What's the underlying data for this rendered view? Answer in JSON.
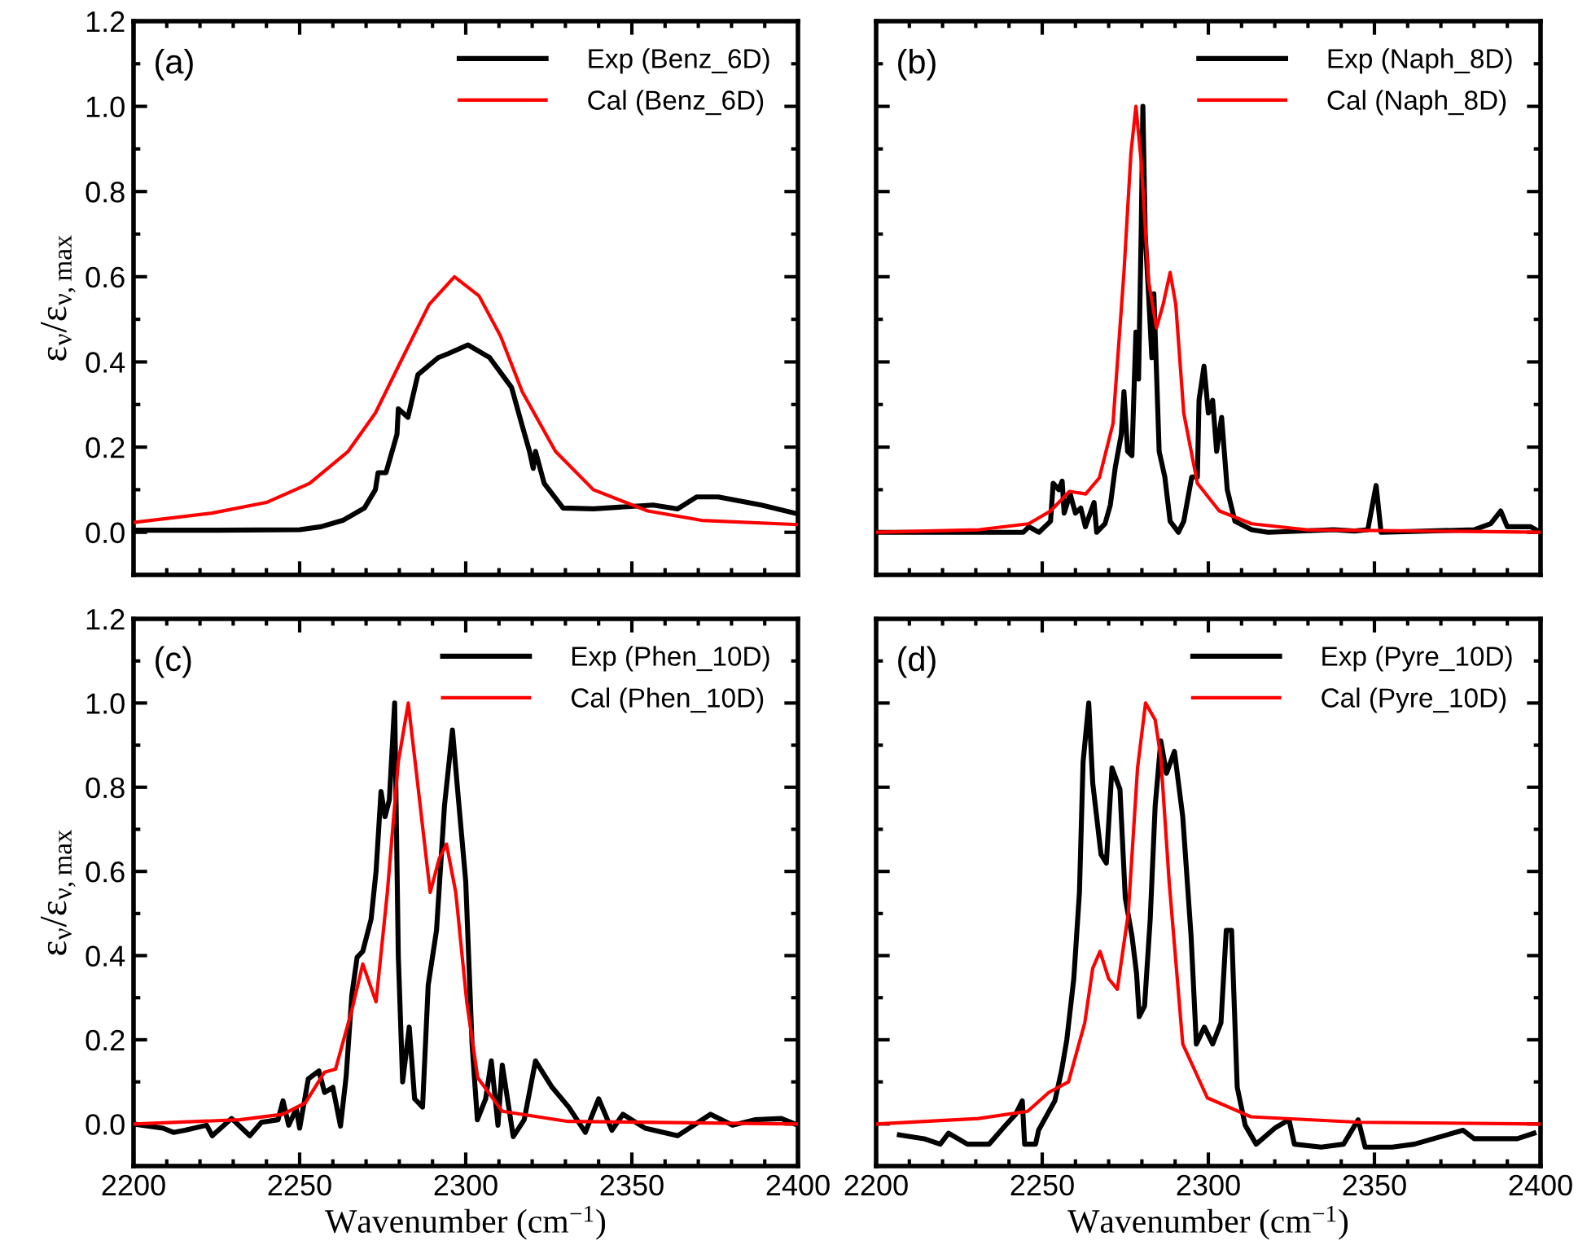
{
  "chart_data": [
    {
      "type": "line",
      "annotations": [
        "(a)"
      ],
      "ylabel": "ε$_{ν}$/ε$_{ν,max}$",
      "legend": "top right",
      "tick_labels": "y",
      "xlim": [
        2200,
        2400
      ],
      "xticks": [
        {
          "value": 2200,
          "label": null
        },
        {
          "value": 2250,
          "label": null
        },
        {
          "value": 2300,
          "label": null
        },
        {
          "value": 2350,
          "label": null
        },
        {
          "value": 2400,
          "label": null
        }
      ],
      "ylim": [
        -0.1,
        1.2
      ],
      "yticks": [
        {
          "value": 0,
          "label": "0.0"
        },
        {
          "value": 0.2,
          "label": "0.2"
        },
        {
          "value": 0.4,
          "label": "0.4"
        },
        {
          "value": 0.6,
          "label": "0.6"
        },
        {
          "value": 0.8,
          "label": "0.8"
        },
        {
          "value": 1.0,
          "label": "1.0"
        },
        {
          "value": 1.2,
          "label": "1.2"
        }
      ],
      "series": [
        {
          "name": "Exp (Benz_6D)",
          "color": "#000000",
          "x": [
            2200,
            2225,
            2250,
            2256.4,
            2263,
            2269.5,
            2272.8,
            2273.6,
            2276,
            2279.3,
            2279.7,
            2282.6,
            2285.6,
            2291.7,
            2294.9,
            2300.7,
            2307.2,
            2313.8,
            2317,
            2319.2,
            2320.3,
            2321,
            2323.6,
            2329.3,
            2338.4,
            2356.4,
            2363.8,
            2369.5,
            2376,
            2389,
            2399
          ],
          "values": [
            0.005,
            0.005,
            0.006,
            0.013,
            0.028,
            0.057,
            0.1,
            0.14,
            0.14,
            0.23,
            0.29,
            0.27,
            0.37,
            0.41,
            0.42,
            0.44,
            0.41,
            0.34,
            0.25,
            0.19,
            0.15,
            0.19,
            0.115,
            0.057,
            0.055,
            0.064,
            0.055,
            0.083,
            0.083,
            0.064,
            0.045
          ]
        },
        {
          "name": "Cal (Benz_6D)",
          "color": "#ff0000",
          "x": [
            2200,
            2223.6,
            2240,
            2253,
            2264.6,
            2272.8,
            2281,
            2289,
            2296.6,
            2304,
            2310.5,
            2317,
            2327,
            2338.4,
            2354.8,
            2371,
            2400
          ],
          "values": [
            0.023,
            0.045,
            0.07,
            0.115,
            0.19,
            0.28,
            0.41,
            0.535,
            0.6,
            0.555,
            0.46,
            0.33,
            0.19,
            0.1,
            0.05,
            0.028,
            0.018
          ]
        }
      ]
    },
    {
      "type": "line",
      "annotations": [
        "(b)"
      ],
      "legend": "top right",
      "tick_labels": false,
      "xlim": [
        2200,
        2400
      ],
      "xticks": [
        {
          "value": 2200,
          "label": null
        },
        {
          "value": 2250,
          "label": null
        },
        {
          "value": 2300,
          "label": null
        },
        {
          "value": 2350,
          "label": null
        },
        {
          "value": 2400,
          "label": null
        }
      ],
      "ylim": [
        -0.1,
        1.2
      ],
      "yticks": [
        {
          "value": 0,
          "label": null
        },
        {
          "value": 0.2,
          "label": null
        },
        {
          "value": 0.4,
          "label": null
        },
        {
          "value": 0.6,
          "label": null
        },
        {
          "value": 0.8,
          "label": null
        },
        {
          "value": 1.0,
          "label": null
        },
        {
          "value": 1.2,
          "label": null
        }
      ],
      "series": [
        {
          "name": "Exp (Naph_8D)",
          "color": "#000000",
          "x": [
            2200,
            2244.3,
            2246,
            2249,
            2252.5,
            2253.3,
            2255,
            2256,
            2256.6,
            2258.4,
            2260,
            2261.6,
            2263,
            2265.6,
            2266.4,
            2268.9,
            2270.5,
            2272,
            2273.8,
            2274.6,
            2275.7,
            2277,
            2278.2,
            2279,
            2279.8,
            2280.3,
            2281,
            2282,
            2283,
            2283.6,
            2285.2,
            2286.9,
            2288.5,
            2291,
            2292.6,
            2295,
            2296.7,
            2297.2,
            2298.7,
            2300,
            2301.3,
            2302.5,
            2304,
            2305.7,
            2308,
            2313,
            2318,
            2337.7,
            2344,
            2348,
            2350.5,
            2352,
            2380,
            2385,
            2388,
            2390,
            2397,
            2400
          ],
          "values": [
            0.0,
            0.0,
            0.013,
            0.0,
            0.026,
            0.115,
            0.1,
            0.12,
            0.045,
            0.09,
            0.045,
            0.057,
            0.013,
            0.07,
            0.0,
            0.02,
            0.064,
            0.153,
            0.23,
            0.33,
            0.19,
            0.18,
            0.47,
            0.36,
            0.71,
            1.0,
            0.7,
            0.56,
            0.41,
            0.56,
            0.19,
            0.13,
            0.026,
            0.0,
            0.026,
            0.13,
            0.13,
            0.31,
            0.39,
            0.28,
            0.31,
            0.19,
            0.27,
            0.1,
            0.026,
            0.006,
            0.0,
            0.006,
            0.003,
            0.006,
            0.11,
            0.0,
            0.006,
            0.02,
            0.05,
            0.013,
            0.013,
            0.0
          ]
        },
        {
          "name": "Cal (Naph_8D)",
          "color": "#ff0000",
          "x": [
            2200,
            2231,
            2245.9,
            2252.5,
            2258.2,
            2263.1,
            2267.2,
            2271.3,
            2274.6,
            2276.7,
            2278.2,
            2279.8,
            2282,
            2284.4,
            2286.4,
            2288.5,
            2290.2,
            2292.6,
            2296.7,
            2303.3,
            2313,
            2329.5,
            2400
          ],
          "values": [
            0.0,
            0.006,
            0.02,
            0.05,
            0.096,
            0.09,
            0.128,
            0.255,
            0.61,
            0.89,
            1.0,
            0.87,
            0.59,
            0.48,
            0.535,
            0.61,
            0.535,
            0.28,
            0.115,
            0.05,
            0.02,
            0.006,
            0.0
          ]
        }
      ]
    },
    {
      "type": "line",
      "annotations": [
        "(c)"
      ],
      "xlabel": "Wavenumber (cm$^{−1}$)",
      "ylabel": "ε$_{ν}$/ε$_{ν,max}$",
      "legend": "top right",
      "xlim": [
        2200,
        2400
      ],
      "xticks": [
        2200,
        2250,
        2300,
        2350,
        2400
      ],
      "ylim": [
        -0.1,
        1.2
      ],
      "yticks": [
        {
          "value": 0,
          "label": "0.0"
        },
        {
          "value": 0.2,
          "label": "0.2"
        },
        {
          "value": 0.4,
          "label": "0.4"
        },
        {
          "value": 0.6,
          "label": "0.6"
        },
        {
          "value": 0.8,
          "label": "0.8"
        },
        {
          "value": 1.0,
          "label": "1.0"
        },
        {
          "value": 1.2,
          "label": "1.2"
        }
      ],
      "series": [
        {
          "name": "Exp (Phen_10D)",
          "color": "#000000",
          "x": [
            2200,
            2208.9,
            2212,
            2215.5,
            2222,
            2223.7,
            2229.5,
            2235,
            2238.5,
            2243.5,
            2245,
            2246.7,
            2249,
            2250,
            2252.6,
            2255.8,
            2257.5,
            2260,
            2262.3,
            2264,
            2265.7,
            2267.3,
            2269,
            2271.5,
            2273,
            2274.5,
            2275.7,
            2277,
            2278.6,
            2279.7,
            2281,
            2283,
            2284.6,
            2287,
            2288.7,
            2291.2,
            2293.6,
            2296,
            2297.7,
            2300,
            2301.9,
            2303.5,
            2306,
            2307.7,
            2309.7,
            2311,
            2314.3,
            2317.6,
            2321,
            2326,
            2331,
            2336,
            2340,
            2344,
            2347.3,
            2354,
            2363.8,
            2373.7,
            2380.3,
            2387,
            2395,
            2400
          ],
          "values": [
            0.0,
            -0.01,
            -0.02,
            -0.015,
            -0.003,
            -0.028,
            0.013,
            -0.028,
            0.004,
            0.01,
            0.055,
            -0.003,
            0.036,
            -0.01,
            0.107,
            0.126,
            0.075,
            0.087,
            -0.005,
            0.113,
            0.306,
            0.396,
            0.41,
            0.486,
            0.6,
            0.79,
            0.73,
            0.77,
            1.0,
            0.4,
            0.1,
            0.23,
            0.06,
            0.04,
            0.33,
            0.46,
            0.756,
            0.936,
            0.78,
            0.576,
            0.19,
            0.01,
            0.06,
            0.15,
            -0.003,
            0.14,
            -0.03,
            0.01,
            0.15,
            0.087,
            0.04,
            -0.02,
            0.06,
            -0.015,
            0.023,
            -0.01,
            -0.028,
            0.023,
            -0.003,
            0.01,
            0.013,
            -0.003
          ]
        },
        {
          "name": "Cal (Phen_10D)",
          "color": "#ff0000",
          "x": [
            2200,
            2232,
            2245,
            2251.7,
            2257.5,
            2260.8,
            2265.7,
            2269,
            2273,
            2276.4,
            2279.7,
            2282.7,
            2285.5,
            2289.3,
            2292,
            2294.2,
            2297,
            2300.3,
            2303.6,
            2311,
            2330.8,
            2400
          ],
          "values": [
            0.0,
            0.01,
            0.023,
            0.05,
            0.123,
            0.13,
            0.27,
            0.38,
            0.29,
            0.55,
            0.86,
            1.0,
            0.81,
            0.55,
            0.63,
            0.665,
            0.55,
            0.29,
            0.11,
            0.03,
            0.006,
            0.0
          ]
        }
      ]
    },
    {
      "type": "line",
      "annotations": [
        "(d)"
      ],
      "xlabel": "Wavenumber (cm$^{−1}$)",
      "legend": "top right",
      "tick_labels": "x",
      "xlim": [
        2200,
        2400
      ],
      "xticks": [
        2200,
        2250,
        2300,
        2350,
        2400
      ],
      "ylim": [
        -0.1,
        1.2
      ],
      "yticks": [
        {
          "value": 0,
          "label": null
        },
        {
          "value": 0.2,
          "label": null
        },
        {
          "value": 0.4,
          "label": null
        },
        {
          "value": 0.6,
          "label": null
        },
        {
          "value": 0.8,
          "label": null
        },
        {
          "value": 1.0,
          "label": null
        },
        {
          "value": 1.2,
          "label": null
        }
      ],
      "series": [
        {
          "name": "Exp (Pyre_10D)",
          "color": "#000000",
          "x": [
            2207,
            2214.4,
            2219.3,
            2221.8,
            2227.5,
            2234,
            2239,
            2242,
            2244,
            2244.7,
            2248,
            2248.9,
            2253.8,
            2255.8,
            2257.4,
            2259.5,
            2261.2,
            2262.3,
            2264,
            2265.2,
            2267.7,
            2269.3,
            2271,
            2273.4,
            2275,
            2277,
            2278.4,
            2279.2,
            2280.8,
            2282.5,
            2284,
            2285.7,
            2287.4,
            2289.8,
            2292.3,
            2294.8,
            2296.4,
            2298.8,
            2301.3,
            2303.8,
            2305.4,
            2307,
            2308.7,
            2311.1,
            2314.4,
            2320,
            2324.3,
            2325.9,
            2334,
            2340.7,
            2345.1,
            2347.2,
            2355.4,
            2362,
            2376.7,
            2380,
            2393,
            2398
          ],
          "values": [
            -0.026,
            -0.035,
            -0.048,
            -0.022,
            -0.048,
            -0.048,
            -0.003,
            0.023,
            0.055,
            -0.048,
            -0.048,
            -0.015,
            0.055,
            0.126,
            0.2,
            0.345,
            0.55,
            0.86,
            1.0,
            0.81,
            0.64,
            0.62,
            0.846,
            0.795,
            0.537,
            0.447,
            0.357,
            0.255,
            0.28,
            0.486,
            0.756,
            0.91,
            0.833,
            0.885,
            0.73,
            0.447,
            0.19,
            0.23,
            0.19,
            0.24,
            0.46,
            0.46,
            0.087,
            -0.003,
            -0.048,
            -0.01,
            0.01,
            -0.048,
            -0.055,
            -0.048,
            0.01,
            -0.055,
            -0.055,
            -0.048,
            -0.015,
            -0.035,
            -0.035,
            -0.022
          ]
        },
        {
          "name": "Cal (Pyre_10D)",
          "color": "#ff0000",
          "x": [
            2200,
            2230.8,
            2245.6,
            2252,
            2257.9,
            2262.8,
            2265.2,
            2267.4,
            2270,
            2272.6,
            2275.9,
            2278.7,
            2281.1,
            2284,
            2285.7,
            2288.2,
            2292.3,
            2299.7,
            2312.8,
            2345.6,
            2400
          ],
          "values": [
            0.0,
            0.013,
            0.03,
            0.075,
            0.1,
            0.24,
            0.37,
            0.41,
            0.345,
            0.32,
            0.5,
            0.846,
            1.0,
            0.96,
            0.87,
            0.576,
            0.19,
            0.062,
            0.017,
            0.004,
            0.0
          ]
        }
      ]
    }
  ]
}
